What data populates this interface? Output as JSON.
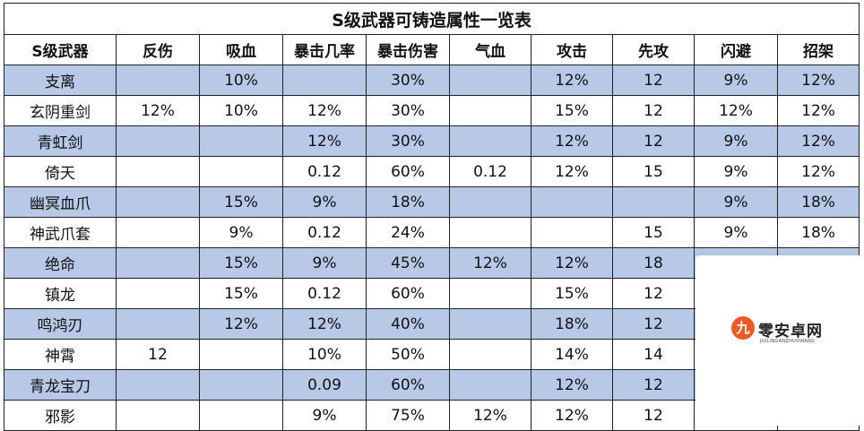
{
  "title": "S级武器可铸造属性一览表",
  "headers": [
    "S级武器",
    "反伤",
    "吸血",
    "暴击几率",
    "暴击伤害",
    "气血",
    "攻击",
    "先攻",
    "闪避",
    "招架"
  ],
  "rows": [
    [
      "支离",
      "",
      "10%",
      "",
      "30%",
      "",
      "12%",
      "12",
      "9%",
      "12%"
    ],
    [
      "玄阴重剑",
      "12%",
      "10%",
      "12%",
      "30%",
      "",
      "15%",
      "12",
      "12%",
      "12%"
    ],
    [
      "青虹剑",
      "",
      "",
      "12%",
      "30%",
      "",
      "12%",
      "12",
      "9%",
      "12%"
    ],
    [
      "倚天",
      "",
      "",
      "0.12",
      "60%",
      "0.12",
      "12%",
      "15",
      "9%",
      "12%"
    ],
    [
      "幽冥血爪",
      "",
      "15%",
      "9%",
      "18%",
      "",
      "",
      "",
      "9%",
      "18%"
    ],
    [
      "神武爪套",
      "",
      "9%",
      "0.12",
      "24%",
      "",
      "",
      "15",
      "9%",
      "18%"
    ],
    [
      "绝命",
      "",
      "15%",
      "9%",
      "45%",
      "12%",
      "12%",
      "18",
      "",
      ""
    ],
    [
      "镇龙",
      "",
      "15%",
      "0.12",
      "60%",
      "",
      "15%",
      "12",
      "",
      ""
    ],
    [
      "鸣鸿刃",
      "",
      "12%",
      "12%",
      "40%",
      "",
      "18%",
      "12",
      "",
      ""
    ],
    [
      "神霄",
      "12",
      "",
      "10%",
      "50%",
      "",
      "14%",
      "14",
      "",
      ""
    ],
    [
      "青龙宝刀",
      "",
      "",
      "0.09",
      "60%",
      "",
      "12%",
      "12",
      "",
      ""
    ],
    [
      "邪影",
      "",
      "",
      "9%",
      "75%",
      "12%",
      "12%",
      "12",
      "",
      ""
    ]
  ],
  "watermark": {
    "logo_glyph": "九",
    "name": "零安卓网",
    "domain": "JIULINGANZHUOWANG"
  }
}
